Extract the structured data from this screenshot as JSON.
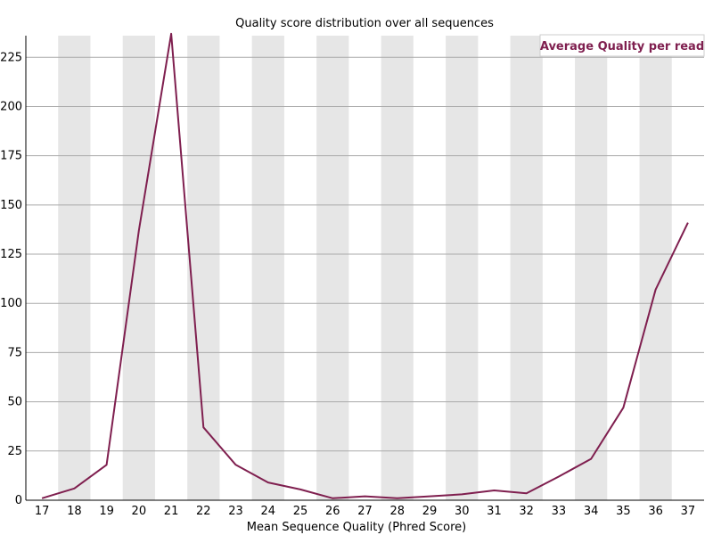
{
  "chart_data": {
    "type": "line",
    "title": "Quality score distribution over all sequences",
    "xlabel": "Mean Sequence Quality (Phred Score)",
    "ylabel": "",
    "categories": [
      "17",
      "18",
      "19",
      "20",
      "21",
      "22",
      "23",
      "24",
      "25",
      "26",
      "27",
      "28",
      "29",
      "30",
      "31",
      "32",
      "33",
      "34",
      "35",
      "36",
      "37"
    ],
    "series": [
      {
        "name": "Average Quality per read",
        "color": "#7f1f4f",
        "values": [
          1,
          6,
          18,
          137,
          237,
          37,
          18,
          9,
          5.5,
          1,
          2,
          1,
          2,
          3,
          5,
          3.5,
          12,
          21,
          47,
          107,
          141
        ]
      }
    ],
    "ylim": [
      0,
      236
    ],
    "yticks": [
      0,
      25,
      50,
      75,
      100,
      125,
      150,
      175,
      200,
      225
    ],
    "grid": true,
    "legend_position": "top-right",
    "band_color": "#e6e6e6",
    "grid_color": "#aaaaaa"
  }
}
